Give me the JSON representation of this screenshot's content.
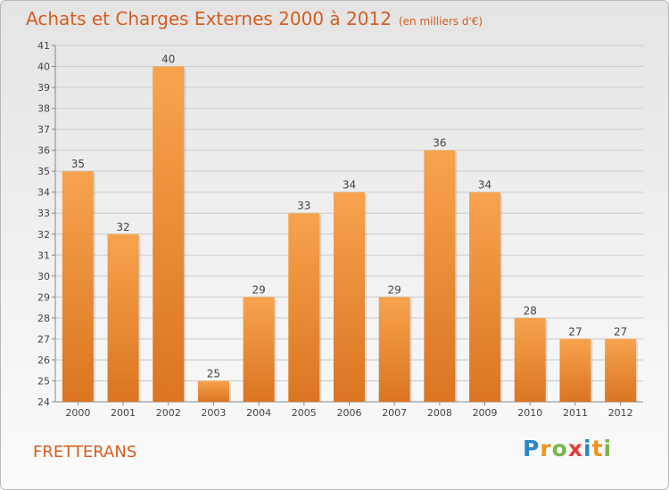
{
  "header": {
    "title": "Achats et Charges Externes 2000 à 2012",
    "subtitle": "(en milliers d'€)"
  },
  "footer": {
    "commune": "FRETTERANS",
    "brand_letters": [
      "P",
      "r",
      "o",
      "x",
      "i",
      "t",
      "i"
    ]
  },
  "colors": {
    "accent": "#d45d20",
    "bar_top": "#f7a34e",
    "bar_bottom": "#db7521",
    "grid": "#cccccc",
    "brand": [
      "#2e86c8",
      "#f0931e",
      "#7ab648",
      "#e23b3b",
      "#2e86c8",
      "#f0931e",
      "#7ab648"
    ]
  },
  "chart_data": {
    "type": "bar",
    "categories": [
      "2000",
      "2001",
      "2002",
      "2003",
      "2004",
      "2005",
      "2006",
      "2007",
      "2008",
      "2009",
      "2010",
      "2011",
      "2012"
    ],
    "values": [
      35,
      32,
      40,
      25,
      29,
      33,
      34,
      29,
      36,
      34,
      28,
      27,
      27
    ],
    "ylim": [
      24,
      41
    ],
    "yticks": [
      24,
      25,
      26,
      27,
      28,
      29,
      30,
      31,
      32,
      33,
      34,
      35,
      36,
      37,
      38,
      39,
      40,
      41
    ],
    "grid": true
  }
}
